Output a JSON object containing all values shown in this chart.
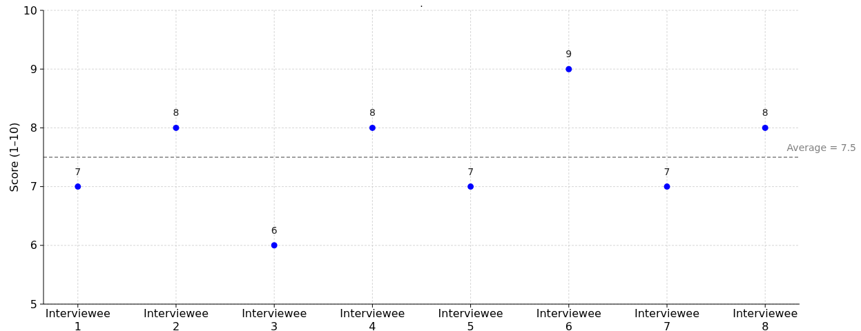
{
  "chart_data": {
    "type": "scatter",
    "title": ".",
    "ylabel": "Score (1–10)",
    "categories": [
      "Interviewee 1",
      "Interviewee 2",
      "Interviewee 3",
      "Interviewee 4",
      "Interviewee 5",
      "Interviewee 6",
      "Interviewee 7",
      "Interviewee 8"
    ],
    "series": [
      {
        "color": "#0000ff",
        "values": [
          7,
          8,
          6,
          8,
          7,
          9,
          7,
          8
        ]
      }
    ],
    "ylim": [
      5,
      10
    ],
    "yticks": [
      5,
      6,
      7,
      8,
      9,
      10
    ],
    "grid": true,
    "marker": "circle",
    "data_labels": true,
    "ref_lines": [
      {
        "axis": "y",
        "value": 7.5,
        "label": "Average = 7.5",
        "color": "#808080",
        "line_style": "dashed"
      }
    ]
  }
}
